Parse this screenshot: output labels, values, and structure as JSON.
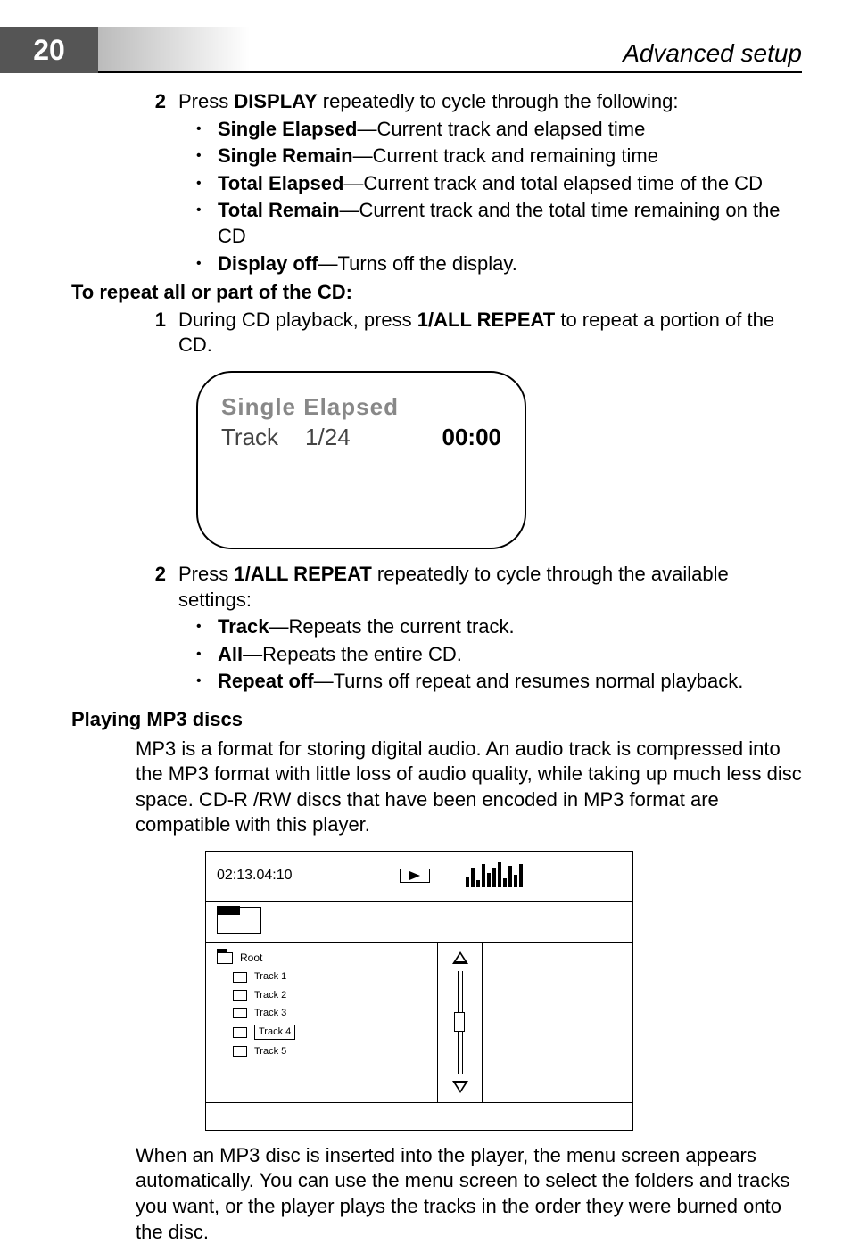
{
  "page_number": "20",
  "chapter_title": "Advanced setup",
  "colors": {
    "page_number_bg": "#555555",
    "page_number_fg": "#ffffff",
    "rule": "#000000",
    "osd_muted": "#888888"
  },
  "step2a": {
    "num": "2",
    "text_pre": "Press ",
    "text_btn": "DISPLAY",
    "text_post": " repeatedly to cycle through the following:",
    "bullets": [
      {
        "term": "Single Elapsed",
        "desc": "—Current track and elapsed time"
      },
      {
        "term": "Single Remain",
        "desc": "—Current track and remaining time"
      },
      {
        "term": "Total Elapsed",
        "desc": "—Current track and total elapsed time of the CD"
      },
      {
        "term": "Total Remain",
        "desc": "—Current track and the total time remaining on the CD"
      },
      {
        "term": "Display off",
        "desc": "—Turns off the display."
      }
    ]
  },
  "repeat_heading": "To repeat all or part of the CD:",
  "step1b": {
    "num": "1",
    "text_pre": "During CD playback, press ",
    "text_btn": "1/ALL REPEAT",
    "text_post": " to repeat a portion of the CD."
  },
  "osd1": {
    "line1": "Single Elapsed",
    "track_label": "Track",
    "track_num": "1/24",
    "time": "00:00"
  },
  "step2b": {
    "num": "2",
    "text_pre": "Press ",
    "text_btn": "1/ALL REPEAT",
    "text_post": " repeatedly to cycle through the available settings:",
    "bullets": [
      {
        "term": "Track",
        "desc": "—Repeats the current track."
      },
      {
        "term": "All",
        "desc": "—Repeats the entire CD."
      },
      {
        "term": "Repeat off",
        "desc": "—Turns off repeat and resumes normal playback."
      }
    ]
  },
  "mp3_section": {
    "heading": "Playing MP3 discs",
    "para1": "MP3 is a format for storing digital audio. An audio track is compressed into the MP3 format with little loss of audio quality, while taking up much less disc space. CD-R /RW discs that have been encoded in MP3 format are compatible with this player.",
    "para2": "When an MP3 disc is inserted into the player, the menu screen appears automatically. You can use the menu screen to select the folders and tracks you want, or the player plays the tracks in the order they were burned onto the disc."
  },
  "mp3menu": {
    "time": "02:13.04:10",
    "items": [
      {
        "label": "Root",
        "type": "folder-root",
        "indent": false,
        "selected": false
      },
      {
        "label": "Track 1",
        "type": "file",
        "indent": true,
        "selected": false
      },
      {
        "label": "Track 2",
        "type": "file",
        "indent": true,
        "selected": false
      },
      {
        "label": "Track 3",
        "type": "file",
        "indent": true,
        "selected": false
      },
      {
        "label": "Track 4",
        "type": "file",
        "indent": true,
        "selected": true
      },
      {
        "label": "Track 5",
        "type": "file",
        "indent": true,
        "selected": false
      }
    ]
  }
}
